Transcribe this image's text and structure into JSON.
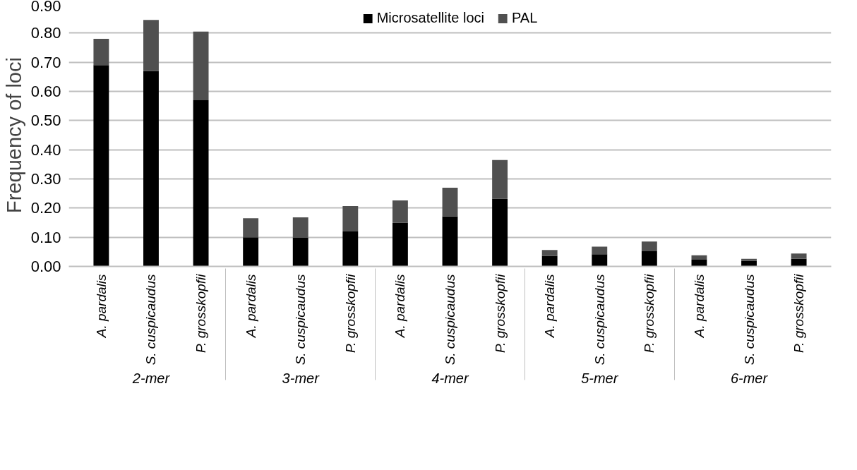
{
  "chart_data": {
    "type": "bar",
    "stacked": true,
    "ylabel": "Frequency of loci",
    "categories": [
      "A. pardalis",
      "S. cuspicaudus",
      "P. grosskopfii",
      "A. pardalis",
      "S. cuspicaudus",
      "P. grosskopfii",
      "A. pardalis",
      "S. cuspicaudus",
      "P. grosskopfii",
      "A. pardalis",
      "S. cuspicaudus",
      "P. grosskopfii",
      "A. pardalis",
      "S. cuspicaudus",
      "P. grosskopfii"
    ],
    "annotations": [
      "2-mer",
      "3-mer",
      "4-mer",
      "5-mer",
      "6-mer"
    ],
    "series": [
      {
        "name": "Microsatellite loci",
        "color": "#000000",
        "values": [
          0.69,
          0.67,
          0.57,
          0.1,
          0.098,
          0.12,
          0.15,
          0.172,
          0.232,
          0.036,
          0.042,
          0.052,
          0.023,
          0.019,
          0.026
        ]
      },
      {
        "name": "PAL",
        "color": "#505050",
        "values": [
          0.09,
          0.175,
          0.235,
          0.065,
          0.07,
          0.087,
          0.076,
          0.098,
          0.133,
          0.02,
          0.026,
          0.033,
          0.015,
          0.007,
          0.018
        ]
      }
    ],
    "ylim": [
      0,
      0.9
    ],
    "yticks": [
      {
        "value": 0,
        "label": "0.00"
      },
      {
        "value": 0.1,
        "label": "0.10"
      },
      {
        "value": 0.2,
        "label": "0.20"
      },
      {
        "value": 0.3,
        "label": "0.30"
      },
      {
        "value": 0.4,
        "label": "0.40"
      },
      {
        "value": 0.5,
        "label": "0.50"
      },
      {
        "value": 0.6,
        "label": "0.60"
      },
      {
        "value": 0.7,
        "label": "0.70"
      },
      {
        "value": 0.8,
        "label": "0.80"
      },
      {
        "value": 0.9,
        "label": "0.90"
      }
    ],
    "grid": "y",
    "legend": "top"
  }
}
